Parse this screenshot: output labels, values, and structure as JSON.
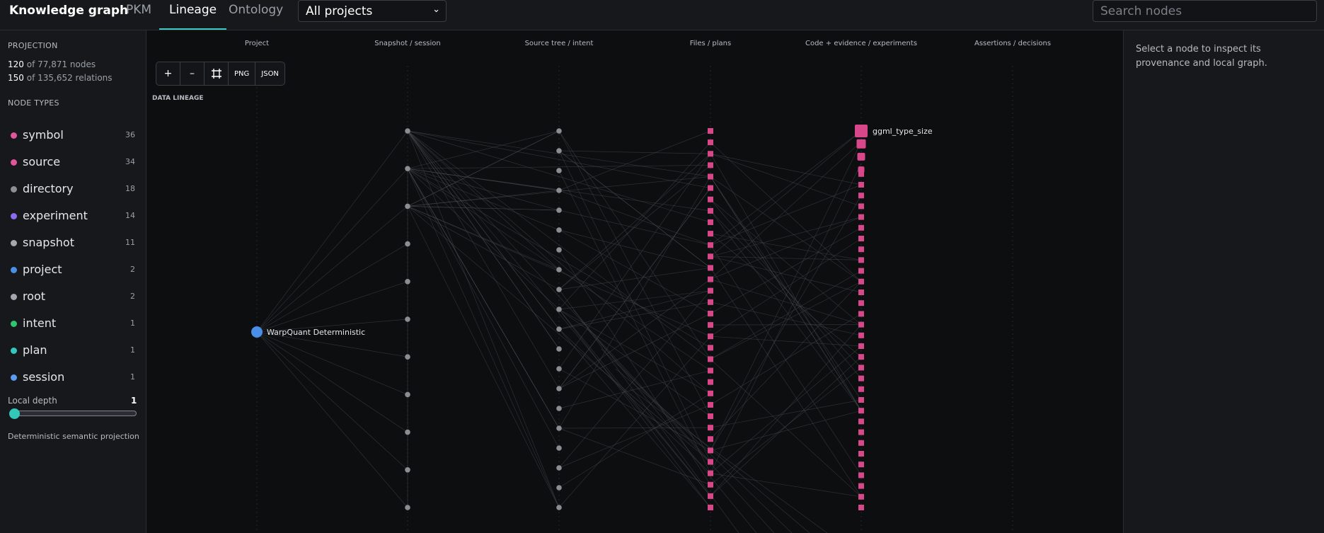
{
  "app": {
    "title": "Knowledge graph",
    "tabs": [
      {
        "label": "PKM"
      },
      {
        "label": "Lineage"
      },
      {
        "label": "Ontology"
      }
    ],
    "project_select": {
      "value": "All projects"
    },
    "search": {
      "placeholder": "Search nodes"
    }
  },
  "sidebar": {
    "projection_heading": "PROJECTION",
    "nodes_shown": "120",
    "nodes_total": "of 77,871 nodes",
    "relations_shown": "150",
    "relations_total": "of 135,652 relations",
    "node_types_heading": "NODE TYPES",
    "node_types": [
      {
        "label": "symbol",
        "count": "36",
        "color": "#e0569a"
      },
      {
        "label": "source",
        "count": "34",
        "color": "#e0569a"
      },
      {
        "label": "directory",
        "count": "18",
        "color": "#8c8f95"
      },
      {
        "label": "experiment",
        "count": "14",
        "color": "#8b6cf0"
      },
      {
        "label": "snapshot",
        "count": "11",
        "color": "#a4a7ad"
      },
      {
        "label": "project",
        "count": "2",
        "color": "#4a8fe7"
      },
      {
        "label": "root",
        "count": "2",
        "color": "#a4a7ad"
      },
      {
        "label": "intent",
        "count": "1",
        "color": "#2fc56f"
      },
      {
        "label": "plan",
        "count": "1",
        "color": "#33c7c2"
      },
      {
        "label": "session",
        "count": "1",
        "color": "#5b9cf0"
      }
    ],
    "local_depth_label": "Local depth",
    "local_depth_value": "1",
    "footnote": "Deterministic semantic projection"
  },
  "canvas": {
    "column_headers": [
      "Project",
      "Snapshot / session",
      "Source tree / intent",
      "Files / plans",
      "Code + evidence / experiments",
      "Assertions / decisions"
    ],
    "toolbar": {
      "zoom_in": "+",
      "zoom_out": "–",
      "fit_icon": "fit-icon",
      "png": "PNG",
      "json": "JSON"
    },
    "section_label": "DATA LINEAGE",
    "labeled_nodes": {
      "project_node": "WarpQuant Deterministic",
      "code_node": "ggml_type_size"
    },
    "node_counts": {
      "snapshot": 11,
      "source_tree": 20,
      "files": 34,
      "code": 36
    },
    "colors": {
      "project": "#4a8fe7",
      "gray_node": "#8a8d92",
      "file_node": "#d9478b",
      "code_node": "#d9478b",
      "edge": "#4b4d52",
      "accent": "#33c7c2"
    }
  },
  "inspector": {
    "hint": "Select a node to inspect its provenance and local graph."
  }
}
